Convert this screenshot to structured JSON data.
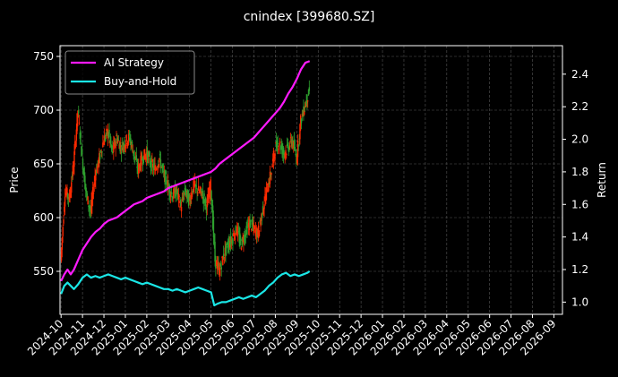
{
  "chart_data": {
    "type": "line",
    "title": "cnindex [399680.SZ]",
    "ylabel": "Price",
    "ylabel_right": "Return",
    "grid": true,
    "legend_position": "top-left",
    "x_ticks": [
      "2024-10",
      "2024-11",
      "2024-12",
      "2025-01",
      "2025-02",
      "2025-03",
      "2025-04",
      "2025-05",
      "2025-06",
      "2025-07",
      "2025-08",
      "2025-09",
      "2025-10",
      "2025-11",
      "2025-12",
      "2026-01",
      "2026-02",
      "2026-03",
      "2026-04",
      "2026-05",
      "2026-06",
      "2026-07",
      "2026-08",
      "2026-09"
    ],
    "ylim_left": [
      510,
      760
    ],
    "yticks_left": [
      550,
      600,
      650,
      700,
      750
    ],
    "ylim_right": [
      0.925,
      2.575
    ],
    "yticks_right": [
      "1.0",
      "1.2",
      "1.4",
      "1.6",
      "1.8",
      "2.0",
      "2.2",
      "2.4"
    ],
    "candles": {
      "color_up": "#ff2a00",
      "color_down": "#2ea02e",
      "close": [
        [
          0,
          560
        ],
        [
          0.2,
          625
        ],
        [
          0.4,
          618
        ],
        [
          0.6,
          650
        ],
        [
          0.8,
          700
        ],
        [
          1.0,
          655
        ],
        [
          1.2,
          620
        ],
        [
          1.4,
          605
        ],
        [
          1.6,
          640
        ],
        [
          1.8,
          655
        ],
        [
          2.0,
          672
        ],
        [
          2.2,
          680
        ],
        [
          2.4,
          660
        ],
        [
          2.6,
          675
        ],
        [
          2.8,
          665
        ],
        [
          3.0,
          670
        ],
        [
          3.2,
          675
        ],
        [
          3.4,
          660
        ],
        [
          3.6,
          645
        ],
        [
          3.8,
          655
        ],
        [
          4.0,
          660
        ],
        [
          4.2,
          650
        ],
        [
          4.4,
          645
        ],
        [
          4.6,
          655
        ],
        [
          4.8,
          640
        ],
        [
          5.0,
          630
        ],
        [
          5.2,
          620
        ],
        [
          5.4,
          625
        ],
        [
          5.6,
          610
        ],
        [
          5.8,
          625
        ],
        [
          6.0,
          615
        ],
        [
          6.2,
          630
        ],
        [
          6.4,
          625
        ],
        [
          6.6,
          622
        ],
        [
          6.8,
          610
        ],
        [
          7.0,
          630
        ],
        [
          7.2,
          560
        ],
        [
          7.4,
          550
        ],
        [
          7.6,
          565
        ],
        [
          7.8,
          575
        ],
        [
          8.0,
          580
        ],
        [
          8.2,
          590
        ],
        [
          8.4,
          575
        ],
        [
          8.6,
          585
        ],
        [
          8.8,
          595
        ],
        [
          9.0,
          590
        ],
        [
          9.2,
          585
        ],
        [
          9.4,
          605
        ],
        [
          9.6,
          625
        ],
        [
          9.8,
          640
        ],
        [
          10.0,
          665
        ],
        [
          10.2,
          670
        ],
        [
          10.4,
          660
        ],
        [
          10.6,
          665
        ],
        [
          10.8,
          672
        ],
        [
          11.0,
          655
        ],
        [
          11.2,
          690
        ],
        [
          11.4,
          705
        ],
        [
          11.6,
          718
        ]
      ]
    },
    "series": [
      {
        "name": "AI Strategy",
        "axis": "right",
        "color": "#ff1aff",
        "points": [
          [
            0,
            1.13
          ],
          [
            0.15,
            1.17
          ],
          [
            0.3,
            1.2
          ],
          [
            0.45,
            1.17
          ],
          [
            0.6,
            1.2
          ],
          [
            0.8,
            1.26
          ],
          [
            1.0,
            1.32
          ],
          [
            1.2,
            1.36
          ],
          [
            1.4,
            1.4
          ],
          [
            1.6,
            1.43
          ],
          [
            1.8,
            1.45
          ],
          [
            2.0,
            1.48
          ],
          [
            2.2,
            1.5
          ],
          [
            2.4,
            1.51
          ],
          [
            2.6,
            1.52
          ],
          [
            2.8,
            1.54
          ],
          [
            3.0,
            1.56
          ],
          [
            3.2,
            1.58
          ],
          [
            3.4,
            1.6
          ],
          [
            3.6,
            1.61
          ],
          [
            3.8,
            1.62
          ],
          [
            4.0,
            1.64
          ],
          [
            4.2,
            1.65
          ],
          [
            4.4,
            1.66
          ],
          [
            4.6,
            1.67
          ],
          [
            4.8,
            1.68
          ],
          [
            5.0,
            1.7
          ],
          [
            5.2,
            1.71
          ],
          [
            5.4,
            1.72
          ],
          [
            5.6,
            1.73
          ],
          [
            5.8,
            1.74
          ],
          [
            6.0,
            1.75
          ],
          [
            6.2,
            1.76
          ],
          [
            6.4,
            1.77
          ],
          [
            6.6,
            1.78
          ],
          [
            6.8,
            1.79
          ],
          [
            7.0,
            1.8
          ],
          [
            7.2,
            1.82
          ],
          [
            7.4,
            1.85
          ],
          [
            7.6,
            1.87
          ],
          [
            7.8,
            1.89
          ],
          [
            8.0,
            1.91
          ],
          [
            8.2,
            1.93
          ],
          [
            8.4,
            1.95
          ],
          [
            8.6,
            1.97
          ],
          [
            8.8,
            1.99
          ],
          [
            9.0,
            2.01
          ],
          [
            9.2,
            2.04
          ],
          [
            9.4,
            2.07
          ],
          [
            9.6,
            2.1
          ],
          [
            9.8,
            2.13
          ],
          [
            10.0,
            2.16
          ],
          [
            10.2,
            2.19
          ],
          [
            10.4,
            2.23
          ],
          [
            10.6,
            2.28
          ],
          [
            10.8,
            2.32
          ],
          [
            11.0,
            2.37
          ],
          [
            11.2,
            2.43
          ],
          [
            11.4,
            2.47
          ],
          [
            11.6,
            2.48
          ]
        ]
      },
      {
        "name": "Buy-and-Hold",
        "axis": "right",
        "color": "#1ae6e6",
        "points": [
          [
            0,
            1.05
          ],
          [
            0.15,
            1.1
          ],
          [
            0.3,
            1.12
          ],
          [
            0.45,
            1.1
          ],
          [
            0.6,
            1.08
          ],
          [
            0.8,
            1.11
          ],
          [
            1.0,
            1.15
          ],
          [
            1.2,
            1.17
          ],
          [
            1.4,
            1.15
          ],
          [
            1.6,
            1.16
          ],
          [
            1.8,
            1.15
          ],
          [
            2.0,
            1.16
          ],
          [
            2.2,
            1.17
          ],
          [
            2.4,
            1.16
          ],
          [
            2.6,
            1.15
          ],
          [
            2.8,
            1.14
          ],
          [
            3.0,
            1.15
          ],
          [
            3.2,
            1.14
          ],
          [
            3.4,
            1.13
          ],
          [
            3.6,
            1.12
          ],
          [
            3.8,
            1.11
          ],
          [
            4.0,
            1.12
          ],
          [
            4.2,
            1.11
          ],
          [
            4.4,
            1.1
          ],
          [
            4.6,
            1.09
          ],
          [
            4.8,
            1.08
          ],
          [
            5.0,
            1.08
          ],
          [
            5.2,
            1.07
          ],
          [
            5.4,
            1.08
          ],
          [
            5.6,
            1.07
          ],
          [
            5.8,
            1.06
          ],
          [
            6.0,
            1.07
          ],
          [
            6.2,
            1.08
          ],
          [
            6.4,
            1.09
          ],
          [
            6.6,
            1.08
          ],
          [
            6.8,
            1.07
          ],
          [
            7.0,
            1.06
          ],
          [
            7.15,
            0.98
          ],
          [
            7.3,
            0.99
          ],
          [
            7.5,
            1.0
          ],
          [
            7.7,
            1.0
          ],
          [
            7.9,
            1.01
          ],
          [
            8.1,
            1.02
          ],
          [
            8.3,
            1.03
          ],
          [
            8.5,
            1.02
          ],
          [
            8.7,
            1.03
          ],
          [
            8.9,
            1.04
          ],
          [
            9.1,
            1.03
          ],
          [
            9.3,
            1.05
          ],
          [
            9.5,
            1.07
          ],
          [
            9.7,
            1.1
          ],
          [
            9.9,
            1.12
          ],
          [
            10.1,
            1.15
          ],
          [
            10.3,
            1.17
          ],
          [
            10.5,
            1.18
          ],
          [
            10.7,
            1.16
          ],
          [
            10.9,
            1.17
          ],
          [
            11.1,
            1.16
          ],
          [
            11.3,
            1.17
          ],
          [
            11.5,
            1.18
          ],
          [
            11.6,
            1.19
          ]
        ]
      }
    ]
  }
}
